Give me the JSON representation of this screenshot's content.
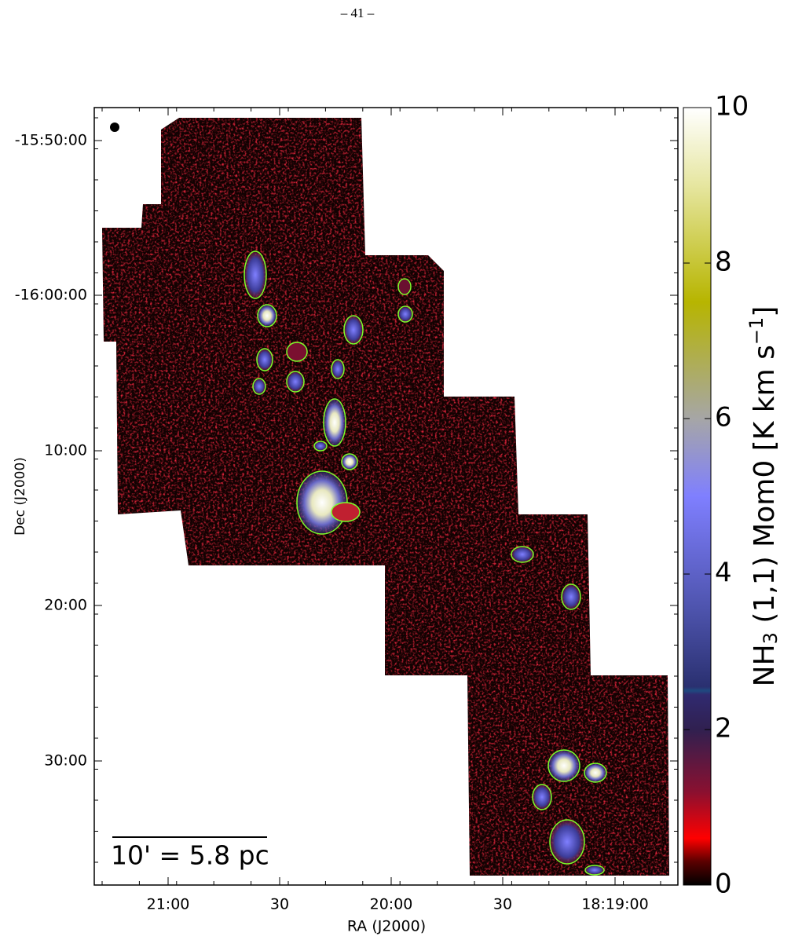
{
  "page_number": "– 41 –",
  "chart_data": {
    "type": "image",
    "xlabel": "RA (J2000)",
    "ylabel": "Dec (J2000)",
    "xtick_labels": [
      "21:00",
      "30",
      "20:00",
      "30",
      "18:19:00"
    ],
    "ytick_labels": [
      "-15:50:00",
      "-16:00:00",
      "10:00",
      "20:00",
      "30:00"
    ],
    "scale_bar_label": "10' = 5.8 pc",
    "colorbar": {
      "label_parts": [
        "NH",
        "3",
        " (1,1) Mom0 [K km s",
        "−1",
        "]"
      ],
      "clim": [
        0,
        10
      ],
      "ticks": [
        0,
        2,
        4,
        6,
        8,
        10
      ]
    }
  }
}
